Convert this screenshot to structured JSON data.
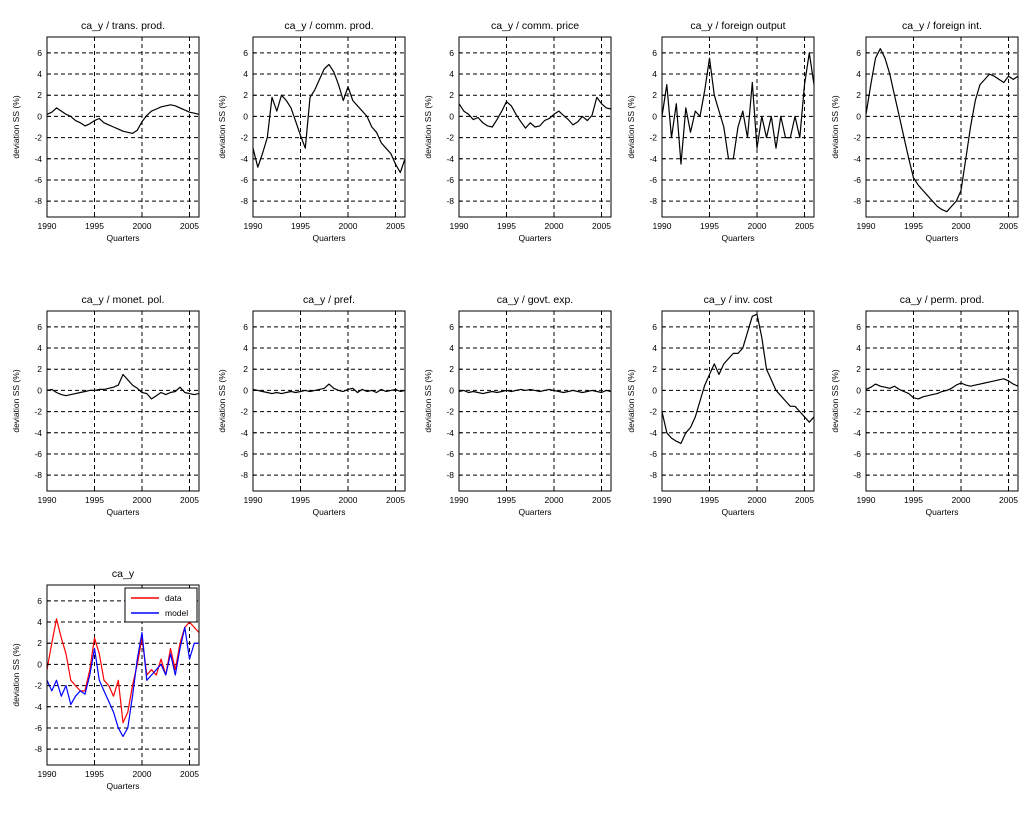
{
  "panel_config": {
    "xlim": [
      1990,
      2006
    ],
    "ylim": [
      -9.5,
      7.5
    ],
    "xticks": [
      1990,
      1995,
      2000,
      2005
    ],
    "yticks": [
      6,
      4,
      2,
      0,
      -2,
      -4,
      -6,
      -8
    ],
    "xlabel": "Quarters",
    "ylabel": "deviation SS (%)",
    "grid": "dashed"
  },
  "chart_data": [
    {
      "type": "line",
      "title": "ca_y / trans. prod.",
      "xlabel": "Quarters",
      "ylabel": "deviation SS (%)",
      "xlim": [
        1990,
        2006
      ],
      "ylim": [
        -9.5,
        7.5
      ],
      "series": [
        {
          "color": "#000000",
          "x": [
            1990,
            1990.5,
            1991,
            1991.5,
            1992,
            1992.5,
            1993,
            1993.5,
            1994,
            1994.5,
            1995,
            1995.5,
            1996,
            1996.5,
            1997,
            1997.5,
            1998,
            1998.5,
            1999,
            1999.5,
            2000,
            2000.5,
            2001,
            2001.5,
            2002,
            2002.5,
            2003,
            2003.5,
            2004,
            2004.5,
            2005,
            2005.5,
            2006
          ],
          "y": [
            0.2,
            0.4,
            0.8,
            0.5,
            0.2,
            0.0,
            -0.4,
            -0.6,
            -0.9,
            -0.7,
            -0.4,
            -0.2,
            -0.6,
            -0.8,
            -1.0,
            -1.2,
            -1.4,
            -1.5,
            -1.6,
            -1.3,
            -0.5,
            0.1,
            0.5,
            0.7,
            0.9,
            1.0,
            1.1,
            1.0,
            0.8,
            0.6,
            0.4,
            0.3,
            0.2
          ]
        }
      ]
    },
    {
      "type": "line",
      "title": "ca_y / comm. prod.",
      "xlabel": "Quarters",
      "ylabel": "deviation SS (%)",
      "xlim": [
        1990,
        2006
      ],
      "ylim": [
        -9.5,
        7.5
      ],
      "series": [
        {
          "color": "#000000",
          "x": [
            1990,
            1990.5,
            1991,
            1991.5,
            1992,
            1992.5,
            1993,
            1993.5,
            1994,
            1994.5,
            1995,
            1995.5,
            1996,
            1996.5,
            1997,
            1997.5,
            1998,
            1998.5,
            1999,
            1999.5,
            2000,
            2000.5,
            2001,
            2001.5,
            2002,
            2002.5,
            2003,
            2003.5,
            2004,
            2004.5,
            2005,
            2005.5,
            2006
          ],
          "y": [
            -3.0,
            -4.8,
            -3.5,
            -2.0,
            1.8,
            0.5,
            2.0,
            1.5,
            0.8,
            -0.5,
            -1.8,
            -3.0,
            1.8,
            2.5,
            3.5,
            4.5,
            4.9,
            4.2,
            3.0,
            1.5,
            2.8,
            1.5,
            1.0,
            0.5,
            0.0,
            -1.0,
            -1.5,
            -2.5,
            -3.0,
            -3.5,
            -4.5,
            -5.3,
            -4.0
          ]
        }
      ]
    },
    {
      "type": "line",
      "title": "ca_y / comm. price",
      "xlabel": "Quarters",
      "ylabel": "deviation SS (%)",
      "xlim": [
        1990,
        2006
      ],
      "ylim": [
        -9.5,
        7.5
      ],
      "series": [
        {
          "color": "#000000",
          "x": [
            1990,
            1990.5,
            1991,
            1991.5,
            1992,
            1992.5,
            1993,
            1993.5,
            1994,
            1994.5,
            1995,
            1995.5,
            1996,
            1996.5,
            1997,
            1997.5,
            1998,
            1998.5,
            1999,
            1999.5,
            2000,
            2000.5,
            2001,
            2001.5,
            2002,
            2002.5,
            2003,
            2003.5,
            2004,
            2004.5,
            2005,
            2005.5,
            2006
          ],
          "y": [
            1.2,
            0.5,
            0.2,
            -0.3,
            -0.1,
            -0.6,
            -0.9,
            -1.0,
            -0.3,
            0.5,
            1.4,
            1.0,
            0.2,
            -0.5,
            -1.1,
            -0.6,
            -1.0,
            -0.9,
            -0.4,
            -0.2,
            0.2,
            0.5,
            0.1,
            -0.3,
            -0.8,
            -0.5,
            0.0,
            -0.4,
            0.1,
            1.8,
            1.2,
            0.8,
            0.7
          ]
        }
      ]
    },
    {
      "type": "line",
      "title": "ca_y / foreign output",
      "xlabel": "Quarters",
      "ylabel": "deviation SS (%)",
      "xlim": [
        1990,
        2006
      ],
      "ylim": [
        -9.5,
        7.5
      ],
      "series": [
        {
          "color": "#000000",
          "x": [
            1990,
            1990.5,
            1991,
            1991.5,
            1992,
            1992.5,
            1993,
            1993.5,
            1994,
            1994.5,
            1995,
            1995.5,
            1996,
            1996.5,
            1997,
            1997.5,
            1998,
            1998.5,
            1999,
            1999.5,
            2000,
            2000.5,
            2001,
            2001.5,
            2002,
            2002.5,
            2003,
            2003.5,
            2004,
            2004.5,
            2005,
            2005.5,
            2006
          ],
          "y": [
            0.0,
            3.0,
            -2.0,
            1.2,
            -4.5,
            0.8,
            -1.5,
            0.5,
            0.0,
            2.5,
            5.5,
            2.0,
            0.5,
            -1.0,
            -4.0,
            -4.0,
            -1.0,
            0.5,
            -2.0,
            3.2,
            -3.0,
            0.0,
            -2.0,
            0.0,
            -3.0,
            0.0,
            -2.0,
            -2.0,
            0.0,
            -2.0,
            3.0,
            6.0,
            3.0
          ]
        }
      ]
    },
    {
      "type": "line",
      "title": "ca_y / foreign int.",
      "xlabel": "Quarters",
      "ylabel": "deviation SS (%)",
      "xlim": [
        1990,
        2006
      ],
      "ylim": [
        -9.5,
        7.5
      ],
      "series": [
        {
          "color": "#000000",
          "x": [
            1990,
            1990.5,
            1991,
            1991.5,
            1992,
            1992.5,
            1993,
            1993.5,
            1994,
            1994.5,
            1995,
            1995.5,
            1996,
            1996.5,
            1997,
            1997.5,
            1998,
            1998.5,
            1999,
            1999.5,
            2000,
            2000.5,
            2001,
            2001.5,
            2002,
            2002.5,
            2003,
            2003.5,
            2004,
            2004.5,
            2005,
            2005.5,
            2006
          ],
          "y": [
            0.2,
            3.0,
            5.5,
            6.4,
            5.5,
            4.0,
            2.0,
            0.0,
            -2.0,
            -4.0,
            -5.8,
            -6.5,
            -7.0,
            -7.5,
            -8.0,
            -8.5,
            -8.8,
            -9.0,
            -8.5,
            -8.0,
            -7.0,
            -4.0,
            -1.0,
            1.5,
            3.0,
            3.5,
            4.0,
            3.8,
            3.5,
            3.2,
            3.8,
            3.5,
            3.8
          ]
        }
      ]
    },
    {
      "type": "line",
      "title": "ca_y / monet. pol.",
      "xlabel": "Quarters",
      "ylabel": "deviation SS (%)",
      "xlim": [
        1990,
        2006
      ],
      "ylim": [
        -9.5,
        7.5
      ],
      "series": [
        {
          "color": "#000000",
          "x": [
            1990,
            1990.5,
            1991,
            1991.5,
            1992,
            1992.5,
            1993,
            1993.5,
            1994,
            1994.5,
            1995,
            1995.5,
            1996,
            1996.5,
            1997,
            1997.5,
            1998,
            1998.5,
            1999,
            1999.5,
            2000,
            2000.5,
            2001,
            2001.5,
            2002,
            2002.5,
            2003,
            2003.5,
            2004,
            2004.5,
            2005,
            2005.5,
            2006
          ],
          "y": [
            0.0,
            0.1,
            -0.2,
            -0.4,
            -0.5,
            -0.4,
            -0.3,
            -0.2,
            -0.1,
            0.0,
            0.0,
            0.1,
            0.1,
            0.2,
            0.3,
            0.5,
            1.5,
            1.0,
            0.5,
            0.2,
            -0.2,
            -0.3,
            -0.8,
            -0.5,
            -0.2,
            -0.4,
            -0.2,
            -0.1,
            0.3,
            -0.2,
            -0.3,
            -0.4,
            -0.3
          ]
        }
      ]
    },
    {
      "type": "line",
      "title": "ca_y / pref.",
      "xlabel": "Quarters",
      "ylabel": "deviation SS (%)",
      "xlim": [
        1990,
        2006
      ],
      "ylim": [
        -9.5,
        7.5
      ],
      "series": [
        {
          "color": "#000000",
          "x": [
            1990,
            1990.5,
            1991,
            1991.5,
            1992,
            1992.5,
            1993,
            1993.5,
            1994,
            1994.5,
            1995,
            1995.5,
            1996,
            1996.5,
            1997,
            1997.5,
            1998,
            1998.5,
            1999,
            1999.5,
            2000,
            2000.5,
            2001,
            2001.5,
            2002,
            2002.5,
            2003,
            2003.5,
            2004,
            2004.5,
            2005,
            2005.5,
            2006
          ],
          "y": [
            0.1,
            0.0,
            -0.1,
            -0.2,
            -0.3,
            -0.2,
            -0.3,
            -0.2,
            -0.1,
            -0.2,
            -0.1,
            0.0,
            -0.1,
            0.0,
            0.1,
            0.2,
            0.6,
            0.2,
            0.0,
            -0.1,
            0.1,
            0.2,
            -0.2,
            0.1,
            -0.1,
            0.0,
            -0.2,
            0.1,
            -0.1,
            0.0,
            0.1,
            -0.1,
            0.0
          ]
        }
      ]
    },
    {
      "type": "line",
      "title": "ca_y / govt. exp.",
      "xlabel": "Quarters",
      "ylabel": "deviation SS (%)",
      "xlim": [
        1990,
        2006
      ],
      "ylim": [
        -9.5,
        7.5
      ],
      "series": [
        {
          "color": "#000000",
          "x": [
            1990,
            1990.5,
            1991,
            1991.5,
            1992,
            1992.5,
            1993,
            1993.5,
            1994,
            1994.5,
            1995,
            1995.5,
            1996,
            1996.5,
            1997,
            1997.5,
            1998,
            1998.5,
            1999,
            1999.5,
            2000,
            2000.5,
            2001,
            2001.5,
            2002,
            2002.5,
            2003,
            2003.5,
            2004,
            2004.5,
            2005,
            2005.5,
            2006
          ],
          "y": [
            -0.1,
            0.0,
            -0.2,
            -0.1,
            -0.2,
            -0.3,
            -0.2,
            -0.1,
            -0.2,
            -0.1,
            0.0,
            -0.1,
            0.0,
            0.1,
            0.0,
            0.1,
            0.0,
            -0.1,
            0.0,
            0.1,
            0.0,
            -0.1,
            -0.2,
            -0.1,
            0.0,
            -0.1,
            -0.2,
            -0.1,
            0.0,
            -0.1,
            -0.2,
            0.0,
            -0.1
          ]
        }
      ]
    },
    {
      "type": "line",
      "title": "ca_y / inv. cost",
      "xlabel": "Quarters",
      "ylabel": "deviation SS (%)",
      "xlim": [
        1990,
        2006
      ],
      "ylim": [
        -9.5,
        7.5
      ],
      "series": [
        {
          "color": "#000000",
          "x": [
            1990,
            1990.5,
            1991,
            1991.5,
            1992,
            1992.5,
            1993,
            1993.5,
            1994,
            1994.5,
            1995,
            1995.5,
            1996,
            1996.5,
            1997,
            1997.5,
            1998,
            1998.5,
            1999,
            1999.5,
            2000,
            2000.5,
            2001,
            2001.5,
            2002,
            2002.5,
            2003,
            2003.5,
            2004,
            2004.5,
            2005,
            2005.5,
            2006
          ],
          "y": [
            -2.0,
            -4.0,
            -4.5,
            -4.8,
            -5.0,
            -4.0,
            -3.5,
            -2.5,
            -1.0,
            0.5,
            1.5,
            2.5,
            1.5,
            2.5,
            3.0,
            3.5,
            3.5,
            4.0,
            5.5,
            7.0,
            7.2,
            5.0,
            2.0,
            1.0,
            0.0,
            -0.5,
            -1.0,
            -1.5,
            -1.5,
            -2.0,
            -2.5,
            -3.0,
            -2.5
          ]
        }
      ]
    },
    {
      "type": "line",
      "title": "ca_y / perm. prod.",
      "xlabel": "Quarters",
      "ylabel": "deviation SS (%)",
      "xlim": [
        1990,
        2006
      ],
      "ylim": [
        -9.5,
        7.5
      ],
      "series": [
        {
          "color": "#000000",
          "x": [
            1990,
            1990.5,
            1991,
            1991.5,
            1992,
            1992.5,
            1993,
            1993.5,
            1994,
            1994.5,
            1995,
            1995.5,
            1996,
            1996.5,
            1997,
            1997.5,
            1998,
            1998.5,
            1999,
            1999.5,
            2000,
            2000.5,
            2001,
            2001.5,
            2002,
            2002.5,
            2003,
            2003.5,
            2004,
            2004.5,
            2005,
            2005.5,
            2006
          ],
          "y": [
            0.1,
            0.3,
            0.6,
            0.4,
            0.3,
            0.2,
            0.4,
            0.1,
            -0.1,
            -0.3,
            -0.7,
            -0.8,
            -0.6,
            -0.5,
            -0.4,
            -0.3,
            -0.1,
            0.0,
            0.2,
            0.5,
            0.7,
            0.5,
            0.4,
            0.5,
            0.6,
            0.7,
            0.8,
            0.9,
            1.0,
            1.1,
            0.9,
            0.6,
            0.4
          ]
        }
      ]
    },
    {
      "type": "line",
      "title": "ca_y",
      "xlabel": "Quarters",
      "ylabel": "deviation SS (%)",
      "xlim": [
        1990,
        2006
      ],
      "ylim": [
        -9.5,
        7.5
      ],
      "legend": {
        "position": "top-right",
        "entries": [
          "data",
          "model"
        ]
      },
      "series": [
        {
          "name": "data",
          "color": "#ff0000",
          "x": [
            1990,
            1990.5,
            1991,
            1991.5,
            1992,
            1992.5,
            1993,
            1993.5,
            1994,
            1994.5,
            1995,
            1995.5,
            1996,
            1996.5,
            1997,
            1997.5,
            1998,
            1998.5,
            1999,
            1999.5,
            2000,
            2000.5,
            2001,
            2001.5,
            2002,
            2002.5,
            2003,
            2003.5,
            2004,
            2004.5,
            2005,
            2005.5,
            2006
          ],
          "y": [
            -0.5,
            2.0,
            4.3,
            2.5,
            1.0,
            -1.5,
            -2.0,
            -2.5,
            -2.5,
            -0.5,
            2.5,
            1.0,
            -1.5,
            -2.0,
            -3.0,
            -1.5,
            -5.5,
            -4.5,
            -2.0,
            0.0,
            2.5,
            -1.0,
            -0.5,
            -1.0,
            0.5,
            -1.0,
            1.5,
            -0.5,
            2.0,
            3.5,
            4.0,
            3.5,
            3.0
          ]
        },
        {
          "name": "model",
          "color": "#0000ff",
          "x": [
            1990,
            1990.5,
            1991,
            1991.5,
            1992,
            1992.5,
            1993,
            1993.5,
            1994,
            1994.5,
            1995,
            1995.5,
            1996,
            1996.5,
            1997,
            1997.5,
            1998,
            1998.5,
            1999,
            1999.5,
            2000,
            2000.5,
            2001,
            2001.5,
            2002,
            2002.5,
            2003,
            2003.5,
            2004,
            2004.5,
            2005,
            2005.5,
            2006
          ],
          "y": [
            -1.5,
            -2.5,
            -1.5,
            -3.0,
            -2.0,
            -3.8,
            -3.0,
            -2.5,
            -2.8,
            -1.0,
            1.5,
            -1.5,
            -2.5,
            -3.5,
            -4.5,
            -6.0,
            -6.8,
            -6.0,
            -3.0,
            0.5,
            3.0,
            -1.5,
            -1.0,
            -0.5,
            0.0,
            -1.0,
            1.0,
            -1.0,
            1.5,
            3.5,
            0.5,
            2.0,
            2.0
          ]
        }
      ]
    }
  ]
}
